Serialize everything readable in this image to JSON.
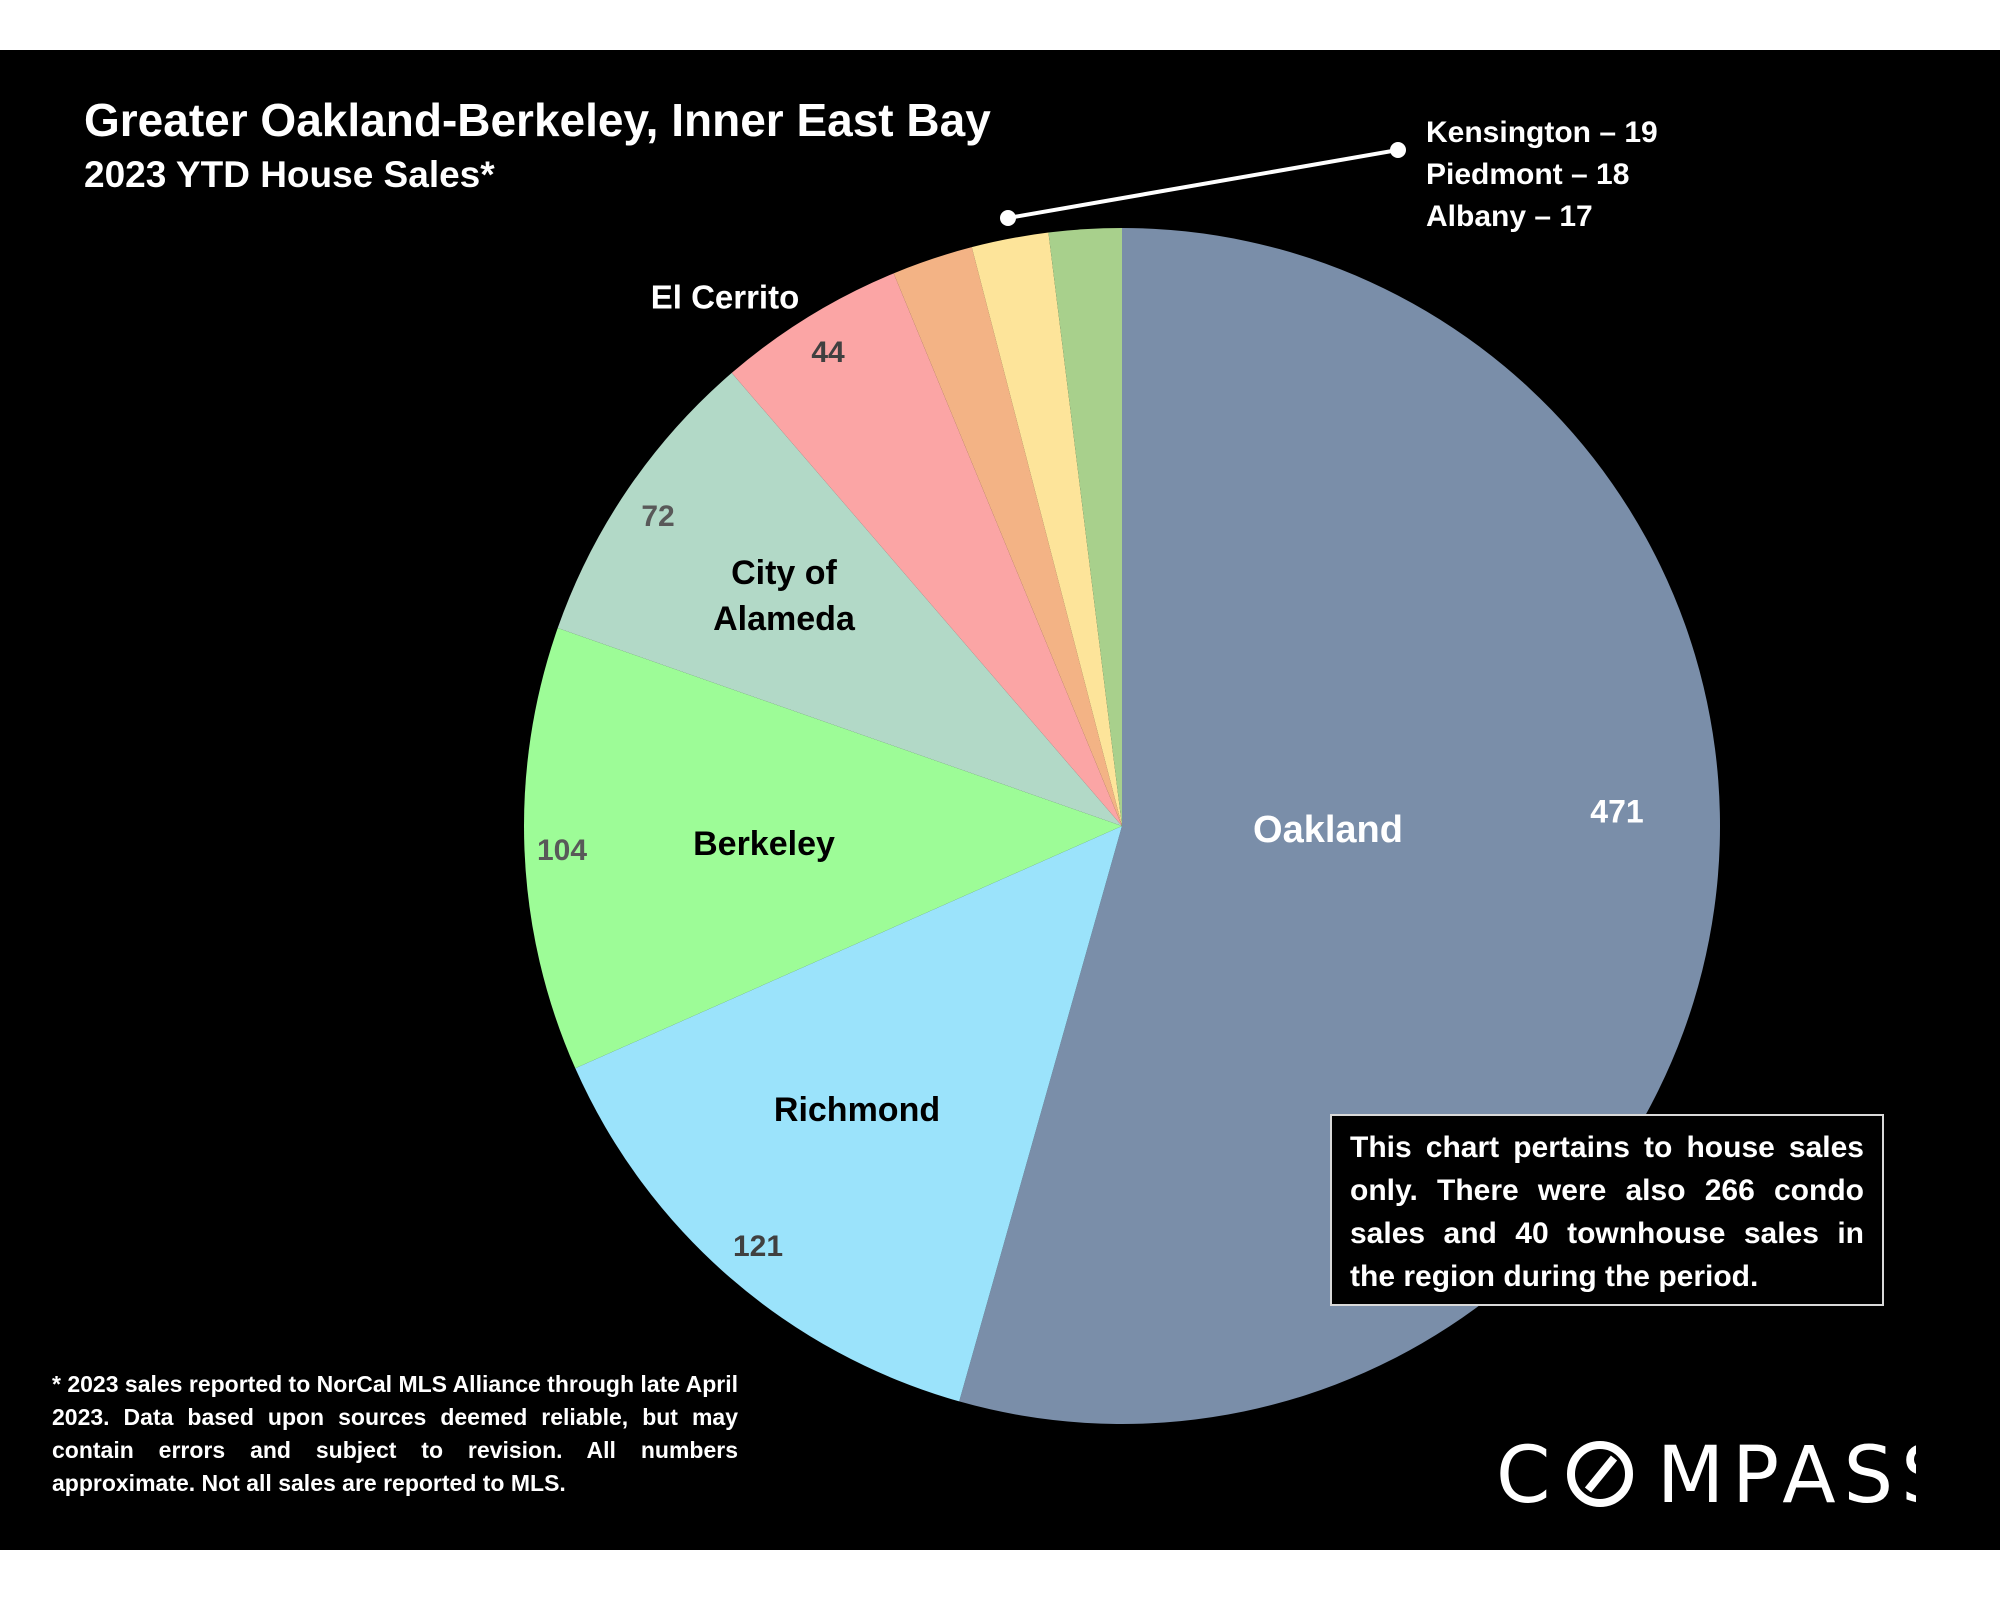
{
  "title": "Greater Oakland-Berkeley, Inner East Bay",
  "subtitle": "2023 YTD House Sales*",
  "callout": {
    "lines": [
      "Kensington – 19",
      "Piedmont – 18",
      "Albany – 17"
    ]
  },
  "note": "This chart pertains to house sales only. There were also 266 condo sales and 40 townhouse sales in the region during the period.",
  "footnote": "* 2023 sales reported to NorCal MLS Alliance through late April 2023. Data based upon sources deemed reliable, but may contain errors and subject to revision. All numbers approximate. Not all sales are reported to MLS.",
  "logo": {
    "text": "COMPASS"
  },
  "colors": {
    "background": "#000000",
    "Oakland": "#7a8ea9",
    "Richmond": "#9be3fb",
    "Berkeley": "#9dfc97",
    "City of Alameda": "#b2d9c7",
    "El Cerrito": "#fba5a5",
    "Kensington": "#f3b385",
    "Piedmont": "#fde49a",
    "Albany": "#a8d08c"
  },
  "chart_data": {
    "type": "pie",
    "slices": [
      {
        "name": "Oakland",
        "value": 471,
        "name_label": "Oakland",
        "value_label": "471"
      },
      {
        "name": "Richmond",
        "value": 121,
        "name_label": "Richmond",
        "value_label": "121"
      },
      {
        "name": "Berkeley",
        "value": 104,
        "name_label": "Berkeley",
        "value_label": "104"
      },
      {
        "name": "City of Alameda",
        "value": 72,
        "name_label": "City of\nAlameda",
        "value_label": "72"
      },
      {
        "name": "El Cerrito",
        "value": 44,
        "name_label": "El Cerrito",
        "value_label": "44"
      },
      {
        "name": "Kensington",
        "value": 19,
        "name_label": "",
        "value_label": ""
      },
      {
        "name": "Piedmont",
        "value": 18,
        "name_label": "",
        "value_label": ""
      },
      {
        "name": "Albany",
        "value": 17,
        "name_label": "",
        "value_label": ""
      }
    ],
    "start_angle": "12 o'clock",
    "direction": "clockwise"
  }
}
